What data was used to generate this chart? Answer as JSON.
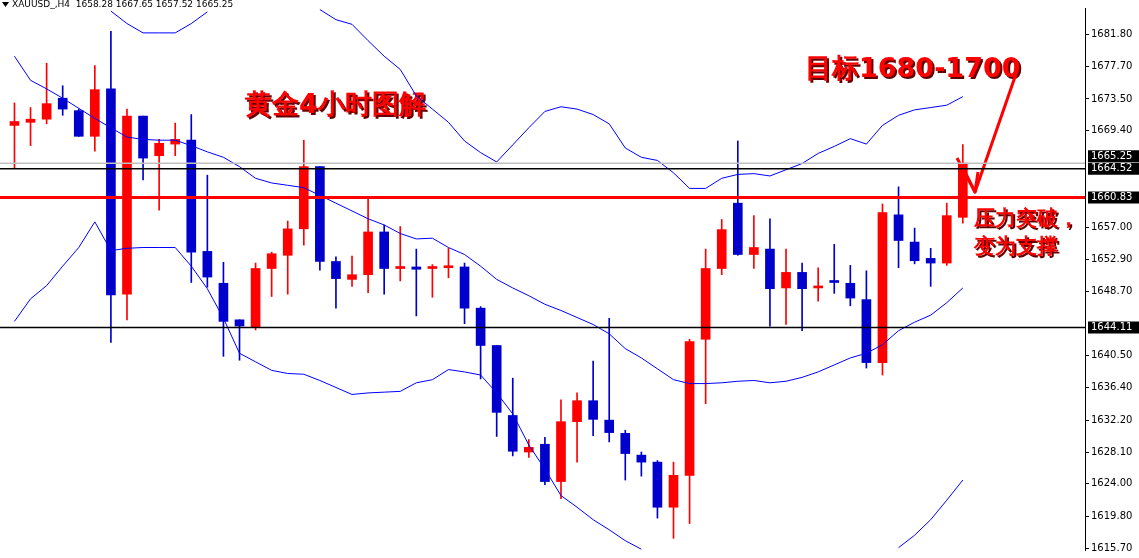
{
  "chart_data": {
    "type": "candlestick",
    "title": "黄金4小时图解",
    "subtitle": "XAUUSD_,H4  1658.28 1667.65 1657.52 1665.25",
    "annotations": [
      "压力突破，变为支撑",
      "目标1680-1700"
    ],
    "categories": [
      null,
      null,
      null,
      null,
      null,
      null,
      null,
      null,
      null,
      null,
      null,
      null,
      null,
      null,
      null,
      null,
      null,
      null,
      null,
      null,
      null,
      null,
      null,
      null,
      null,
      null,
      null,
      null,
      null,
      null,
      null,
      null,
      null,
      null,
      null,
      null,
      null,
      null,
      null,
      null,
      null,
      null,
      null,
      null,
      null,
      null,
      null,
      null,
      null,
      null,
      null,
      null,
      null,
      null,
      null,
      null,
      null,
      null,
      null,
      null
    ],
    "ohlc": [
      [
        1670.1,
        1673.0,
        1664.6,
        1670.6
      ],
      [
        1670.5,
        1672.4,
        1667.5,
        1670.9
      ],
      [
        1670.9,
        1678.1,
        1670.3,
        1672.9
      ],
      [
        1673.6,
        1675.2,
        1671.4,
        1672.2
      ],
      [
        1672.0,
        1672.2,
        1668.7,
        1668.7
      ],
      [
        1668.7,
        1677.8,
        1666.8,
        1674.7
      ],
      [
        1674.8,
        1682.2,
        1642.2,
        1648.3
      ],
      [
        1648.4,
        1672.2,
        1645.1,
        1671.3
      ],
      [
        1671.3,
        1671.3,
        1663.1,
        1665.9
      ],
      [
        1666.2,
        1668.3,
        1659.2,
        1667.8
      ],
      [
        1667.7,
        1670.4,
        1666.2,
        1668.3
      ],
      [
        1668.2,
        1671.5,
        1649.9,
        1653.8
      ],
      [
        1653.9,
        1663.7,
        1649.3,
        1650.6
      ],
      [
        1649.8,
        1652.5,
        1640.4,
        1644.9
      ],
      [
        1645.1,
        1645.1,
        1639.9,
        1644.3
      ],
      [
        1644.2,
        1652.4,
        1643.8,
        1651.7
      ],
      [
        1651.7,
        1653.8,
        1648.1,
        1653.6
      ],
      [
        1653.4,
        1657.8,
        1648.4,
        1656.8
      ],
      [
        1656.8,
        1668.2,
        1654.7,
        1664.8
      ],
      [
        1664.8,
        1664.8,
        1651.5,
        1652.6
      ],
      [
        1652.6,
        1653.2,
        1646.6,
        1650.4
      ],
      [
        1650.3,
        1653.3,
        1649.4,
        1650.9
      ],
      [
        1650.9,
        1660.7,
        1648.6,
        1656.4
      ],
      [
        1656.4,
        1657.3,
        1648.4,
        1651.7
      ],
      [
        1651.7,
        1657.1,
        1650.1,
        1651.8
      ],
      [
        1651.9,
        1654.2,
        1645.6,
        1651.6
      ],
      [
        1651.7,
        1652.2,
        1648.0,
        1651.8
      ],
      [
        1651.8,
        1654.3,
        1650.5,
        1651.9
      ],
      [
        1651.9,
        1652.4,
        1644.6,
        1646.6
      ],
      [
        1646.6,
        1646.8,
        1637.5,
        1641.8
      ],
      [
        1641.8,
        1641.8,
        1630.1,
        1633.2
      ],
      [
        1632.8,
        1637.6,
        1627.6,
        1628.2
      ],
      [
        1628.1,
        1629.7,
        1627.4,
        1628.7
      ],
      [
        1629.1,
        1630.0,
        1623.9,
        1624.3
      ],
      [
        1624.3,
        1634.8,
        1622.1,
        1632.0
      ],
      [
        1632.0,
        1635.7,
        1626.8,
        1634.7
      ],
      [
        1634.7,
        1639.8,
        1630.2,
        1632.3
      ],
      [
        1632.2,
        1645.3,
        1629.4,
        1630.6
      ],
      [
        1630.5,
        1630.9,
        1624.5,
        1627.9
      ],
      [
        1627.7,
        1628.1,
        1625.0,
        1626.8
      ],
      [
        1626.8,
        1627.0,
        1619.6,
        1621.0
      ],
      [
        1621.0,
        1626.8,
        1617.0,
        1625.1
      ],
      [
        1625.1,
        1642.6,
        1618.9,
        1642.3
      ],
      [
        1642.6,
        1654.2,
        1634.3,
        1651.7
      ],
      [
        1651.7,
        1658.0,
        1650.9,
        1656.7
      ],
      [
        1660.1,
        1668.1,
        1653.4,
        1653.5
      ],
      [
        1653.5,
        1658.5,
        1651.7,
        1654.4
      ],
      [
        1654.2,
        1658.1,
        1644.3,
        1649.1
      ],
      [
        1649.2,
        1654.2,
        1644.5,
        1651.2
      ],
      [
        1651.2,
        1652.4,
        1643.7,
        1649.1
      ],
      [
        1649.2,
        1651.8,
        1647.5,
        1649.3
      ],
      [
        1650.0,
        1654.8,
        1648.5,
        1649.9
      ],
      [
        1649.8,
        1652.1,
        1646.9,
        1647.9
      ],
      [
        1647.7,
        1651.4,
        1638.9,
        1639.6
      ],
      [
        1639.6,
        1660.0,
        1638.0,
        1658.9
      ],
      [
        1658.6,
        1662.2,
        1651.8,
        1655.3
      ],
      [
        1655.1,
        1656.9,
        1652.3,
        1652.7
      ],
      [
        1653.0,
        1654.3,
        1649.4,
        1652.4
      ],
      [
        1652.4,
        1660.1,
        1652.1,
        1658.5
      ],
      [
        1658.28,
        1667.65,
        1657.52,
        1665.25
      ]
    ],
    "colors": [
      "#ff0000",
      "#ff0000",
      "#ff0000",
      "#0000cc",
      "#0000cc",
      "#ff0000",
      "#0000cc",
      "#ff0000",
      "#0000cc",
      "#ff0000",
      "#ff0000",
      "#0000cc",
      "#0000cc",
      "#0000cc",
      "#0000cc",
      "#ff0000",
      "#ff0000",
      "#ff0000",
      "#ff0000",
      "#0000cc",
      "#0000cc",
      "#ff0000",
      "#ff0000",
      "#0000cc",
      "#ff0000",
      "#0000cc",
      "#ff0000",
      "#ff0000",
      "#0000cc",
      "#0000cc",
      "#0000cc",
      "#0000cc",
      "#ff0000",
      "#0000cc",
      "#ff0000",
      "#ff0000",
      "#0000cc",
      "#0000cc",
      "#0000cc",
      "#0000cc",
      "#0000cc",
      "#ff0000",
      "#ff0000",
      "#ff0000",
      "#ff0000",
      "#0000cc",
      "#ff0000",
      "#0000cc",
      "#ff0000",
      "#0000cc",
      "#ff0000",
      "#0000cc",
      "#0000cc",
      "#0000cc",
      "#ff0000",
      "#0000cc",
      "#0000cc",
      "#0000cc",
      "#ff0000",
      "#ff0000"
    ],
    "series": [
      {
        "type": "line",
        "color": "#0000ff",
        "values": [
          null,
          null,
          null,
          null,
          null,
          null,
          1684.8,
          1683.2,
          1682.0,
          1682.0,
          1682.0,
          1683.2,
          1684.7,
          null,
          null,
          null,
          null,
          null,
          null,
          1685.0,
          1683.7,
          1683.1,
          1681.0,
          1679.0,
          1677.3,
          1673.9,
          1672.2,
          1670.5,
          1668.1,
          1666.6,
          1665.4,
          1667.6,
          1669.8,
          1671.9,
          1672.5,
          1672.2,
          1671.5,
          1670.3,
          1667.2,
          1666.0,
          1665.6,
          1664.0,
          1662.0,
          1662.0,
          1663.3,
          1663.8,
          1663.9,
          1663.6,
          1664.4,
          1665.2,
          1666.5,
          1667.4,
          1668.4,
          1667.7,
          1670.1,
          1671.4,
          1672.1,
          1672.4,
          1672.7,
          1673.8
        ]
      },
      {
        "type": "line",
        "color": "#0000ff",
        "values": [
          1679.0,
          1675.9,
          1674.8,
          1673.6,
          1672.3,
          1671.0,
          1669.8,
          1668.6,
          1668.3,
          1668.2,
          1668.2,
          1667.5,
          1666.7,
          1666.0,
          1664.8,
          1663.3,
          1662.7,
          1662.4,
          1662.1,
          1661.1,
          1660.1,
          1659.1,
          1658.1,
          1657.3,
          1656.2,
          1655.5,
          1655.6,
          1654.4,
          1653.5,
          1652.0,
          1650.3,
          1649.2,
          1648.2,
          1647.1,
          1646.3,
          1645.4,
          1644.5,
          1643.3,
          1641.4,
          1640.2,
          1638.8,
          1637.4,
          1636.9,
          1636.9,
          1637.0,
          1637.2,
          1637.3,
          1637.0,
          1637.2,
          1637.7,
          1638.4,
          1639.3,
          1640.2,
          1640.8,
          1641.9,
          1643.7,
          1644.8,
          1645.7,
          1647.3,
          1649.2
        ]
      },
      {
        "type": "line",
        "color": "#0000ff",
        "values": [
          1644.9,
          1647.8,
          1649.5,
          1652.0,
          1654.4,
          1657.7,
          1654.0,
          1654.3,
          1654.4,
          1654.4,
          1654.4,
          1652.0,
          1649.1,
          1645.3,
          1640.8,
          1639.7,
          1638.6,
          1638.2,
          1638.1,
          1637.3,
          1636.4,
          1635.5,
          1635.7,
          1635.8,
          1635.9,
          1637.0,
          1637.4,
          1638.7,
          1638.4,
          1638.0,
          1635.7,
          1633.0,
          1629.0,
          1625.9,
          1622.5,
          1621.0,
          1619.4,
          1618.1,
          1616.7,
          1615.6,
          null,
          null,
          null,
          null,
          null,
          null,
          null,
          null,
          null,
          null,
          null,
          null,
          null,
          null,
          null,
          1615.8,
          1617.4,
          1619.4,
          1621.9,
          1624.5
        ]
      }
    ],
    "ylim": [
      1615.5,
      1685.2
    ],
    "yticks": [
      {
        "value": 1681.8,
        "label": "1681.80"
      },
      {
        "value": 1677.7,
        "label": "1677.70"
      },
      {
        "value": 1673.5,
        "label": "1673.50"
      },
      {
        "value": 1669.4,
        "label": "1669.40"
      },
      {
        "value": 1657.0,
        "label": "1657.00"
      },
      {
        "value": 1652.9,
        "label": "1652.90"
      },
      {
        "value": 1648.7,
        "label": "1648.70"
      },
      {
        "value": 1640.5,
        "label": "1640.50"
      },
      {
        "value": 1636.4,
        "label": "1636.40"
      },
      {
        "value": 1632.2,
        "label": "1632.20"
      },
      {
        "value": 1628.1,
        "label": "1628.10"
      },
      {
        "value": 1624.0,
        "label": "1624.00"
      },
      {
        "value": 1619.8,
        "label": "1619.80"
      },
      {
        "value": 1615.7,
        "label": "1615.70"
      }
    ],
    "ref_lines": [
      {
        "axis": "y",
        "value": 1665.25,
        "label": "1665.25",
        "color": "#c0c0c0"
      },
      {
        "axis": "y",
        "value": 1664.52,
        "label": "1664.52",
        "color": "#000000"
      },
      {
        "axis": "y",
        "value": 1660.83,
        "label": "1660.83",
        "color": "#ff0000"
      },
      {
        "axis": "y",
        "value": 1644.11,
        "label": "1644.11",
        "color": "#000000"
      }
    ],
    "grid": false,
    "legend": false,
    "tick_labels": "y"
  }
}
